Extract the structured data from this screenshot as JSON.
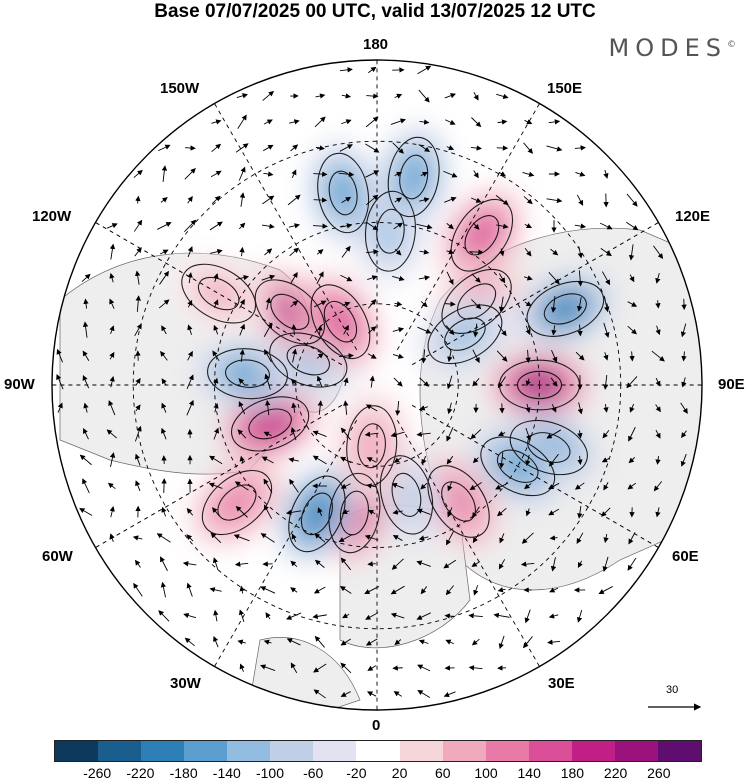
{
  "title": "Base 07/07/2025 00 UTC, valid 13/07/2025 12 UTC",
  "brand": "MODES",
  "brand_mark": "©",
  "longitude_labels": {
    "top": "180",
    "bottom": "0",
    "left": "90W",
    "right": "90E",
    "nw_upper": "150W",
    "nw_lower": "120W",
    "ne_upper": "150E",
    "ne_lower": "120E",
    "sw_upper": "60W",
    "sw_lower": "30W",
    "se_upper": "60E",
    "se_lower": "30E"
  },
  "reference_vector": "30",
  "colorbar": {
    "colors": [
      "#0d3a5c",
      "#1a5e8e",
      "#2f7fb7",
      "#5c9fcf",
      "#93bde0",
      "#bfcfe6",
      "#e2e2f0",
      "#ffffff",
      "#f6d6d8",
      "#f1a9bd",
      "#e77aa6",
      "#da4f97",
      "#c21f86",
      "#9a127c",
      "#5e0e6e"
    ],
    "ticks": [
      "-260",
      "-220",
      "-180",
      "-140",
      "-100",
      "-60",
      "-20",
      "20",
      "60",
      "100",
      "140",
      "180",
      "220",
      "260"
    ]
  },
  "anomalies": [
    {
      "lon": 175,
      "lat": 52,
      "value": -120
    },
    {
      "lon": 170,
      "lat": 38,
      "value": -180
    },
    {
      "lon": -170,
      "lat": 42,
      "value": -160
    },
    {
      "lon": 145,
      "lat": 45,
      "value": 140
    },
    {
      "lon": 130,
      "lat": 58,
      "value": 100
    },
    {
      "lon": 112,
      "lat": 40,
      "value": -190
    },
    {
      "lon": 120,
      "lat": 65,
      "value": -120
    },
    {
      "lon": 90,
      "lat": 50,
      "value": 230
    },
    {
      "lon": 70,
      "lat": 45,
      "value": -150
    },
    {
      "lon": 60,
      "lat": 50,
      "value": -170
    },
    {
      "lon": 35,
      "lat": 55,
      "value": 120
    },
    {
      "lon": 15,
      "lat": 62,
      "value": -100
    },
    {
      "lon": -10,
      "lat": 58,
      "value": 150
    },
    {
      "lon": -25,
      "lat": 55,
      "value": -210
    },
    {
      "lon": -5,
      "lat": 75,
      "value": 80
    },
    {
      "lon": -50,
      "lat": 45,
      "value": 120
    },
    {
      "lon": -70,
      "lat": 62,
      "value": 200
    },
    {
      "lon": -95,
      "lat": 58,
      "value": -160
    },
    {
      "lon": -110,
      "lat": 72,
      "value": -110
    },
    {
      "lon": -130,
      "lat": 62,
      "value": 180
    },
    {
      "lon": -150,
      "lat": 72,
      "value": 160
    },
    {
      "lon": -120,
      "lat": 45,
      "value": 70
    }
  ]
}
